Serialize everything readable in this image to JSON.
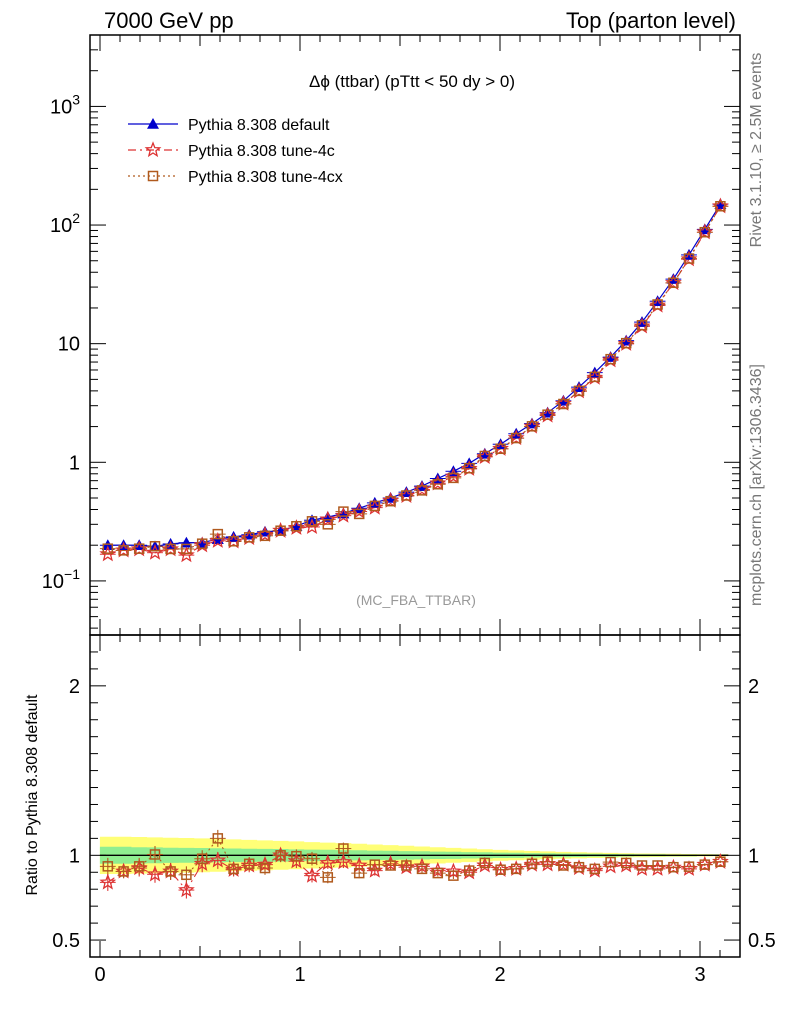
{
  "header": {
    "left": "7000 GeV pp",
    "right": "Top (parton level)"
  },
  "side_text": {
    "rivet": "Rivet 3.1.10, ≥ 2.5M events",
    "mcplots": "mcplots.cern.ch [arXiv:1306.3436]"
  },
  "chart_data": [
    {
      "type": "line",
      "title": "Δϕ (ttbar) (pTtt < 50 dy > 0)",
      "watermark": "(MC_FBA_TTBAR)",
      "yscale": "log",
      "xlim": [
        -0.05,
        3.2
      ],
      "ylim": [
        0.035,
        4000
      ],
      "y_ticks": [
        {
          "v": 0.1,
          "base": "10",
          "exp": "−1"
        },
        {
          "v": 1,
          "base": "1",
          "exp": ""
        },
        {
          "v": 10,
          "base": "10",
          "exp": ""
        },
        {
          "v": 100,
          "base": "10",
          "exp": "2"
        },
        {
          "v": 1000,
          "base": "10",
          "exp": "3"
        }
      ],
      "legend_position": "top-left",
      "x": [
        0.039,
        0.118,
        0.196,
        0.275,
        0.353,
        0.432,
        0.511,
        0.589,
        0.668,
        0.746,
        0.825,
        0.903,
        0.982,
        1.06,
        1.139,
        1.217,
        1.296,
        1.374,
        1.453,
        1.532,
        1.61,
        1.689,
        1.767,
        1.846,
        1.924,
        2.003,
        2.081,
        2.16,
        2.238,
        2.317,
        2.395,
        2.474,
        2.553,
        2.631,
        2.71,
        2.788,
        2.867,
        2.945,
        3.024,
        3.102
      ],
      "series": [
        {
          "name": "Pythia 8.308 default",
          "color": "#0000cc",
          "marker": "triangle",
          "dash": "",
          "values": [
            0.2,
            0.2,
            0.2,
            0.195,
            0.205,
            0.21,
            0.21,
            0.225,
            0.235,
            0.245,
            0.26,
            0.265,
            0.29,
            0.325,
            0.345,
            0.37,
            0.41,
            0.455,
            0.5,
            0.56,
            0.63,
            0.73,
            0.84,
            0.98,
            1.18,
            1.42,
            1.74,
            2.12,
            2.62,
            3.3,
            4.3,
            5.7,
            7.7,
            10.6,
            15.2,
            22.8,
            35.0,
            56.0,
            92.0,
            150.0
          ]
        },
        {
          "name": "Pythia 8.308 tune-4c",
          "color": "#dd3333",
          "marker": "star",
          "dash": "8,4,2,4",
          "values": [
            0.168,
            0.181,
            0.185,
            0.173,
            0.185,
            0.165,
            0.2,
            0.218,
            0.215,
            0.23,
            0.245,
            0.265,
            0.28,
            0.285,
            0.33,
            0.355,
            0.385,
            0.415,
            0.475,
            0.52,
            0.59,
            0.665,
            0.76,
            0.88,
            1.11,
            1.3,
            1.6,
            2.0,
            2.48,
            3.12,
            3.97,
            5.17,
            7.25,
            9.96,
            14.0,
            21.0,
            32.5,
            51.5,
            87.0,
            144.0
          ]
        },
        {
          "name": "Pythia 8.308 tune-4cx",
          "color": "#b05a1e",
          "marker": "open-square",
          "dash": "2,3",
          "values": [
            0.187,
            0.181,
            0.187,
            0.196,
            0.186,
            0.186,
            0.206,
            0.248,
            0.216,
            0.233,
            0.24,
            0.265,
            0.289,
            0.318,
            0.3,
            0.384,
            0.367,
            0.429,
            0.47,
            0.525,
            0.58,
            0.653,
            0.739,
            0.891,
            1.13,
            1.3,
            1.6,
            2.01,
            2.52,
            3.1,
            4.0,
            5.25,
            7.4,
            10.1,
            14.3,
            21.4,
            32.6,
            52.2,
            87.0,
            144.0
          ]
        }
      ]
    },
    {
      "type": "line",
      "ylabel": "Ratio to Pythia 8.308 default",
      "xlim": [
        -0.05,
        3.2
      ],
      "ylim": [
        0.4,
        2.3
      ],
      "x_ticks": [
        {
          "v": 0,
          "label": "0"
        },
        {
          "v": 1,
          "label": "1"
        },
        {
          "v": 2,
          "label": "2"
        },
        {
          "v": 3,
          "label": "3"
        }
      ],
      "y_ticks": [
        {
          "v": 0.5,
          "label": "0.5"
        },
        {
          "v": 1,
          "label": "1"
        },
        {
          "v": 2,
          "label": "2"
        }
      ],
      "reference_line": 1,
      "bands": {
        "green_halfwidth": [
          0.05,
          0.05,
          0.048,
          0.047,
          0.045,
          0.044,
          0.043,
          0.042,
          0.04,
          0.039,
          0.038,
          0.037,
          0.035,
          0.034,
          0.033,
          0.031,
          0.03,
          0.028,
          0.027,
          0.025,
          0.024,
          0.022,
          0.021,
          0.019,
          0.018,
          0.016,
          0.015,
          0.013,
          0.012,
          0.011,
          0.01,
          0.009,
          0.008,
          0.007,
          0.006,
          0.006,
          0.005,
          0.005,
          0.004,
          0.004
        ],
        "yellow_halfwidth": [
          0.11,
          0.11,
          0.108,
          0.106,
          0.104,
          0.102,
          0.1,
          0.097,
          0.094,
          0.091,
          0.088,
          0.085,
          0.082,
          0.078,
          0.075,
          0.072,
          0.068,
          0.064,
          0.06,
          0.056,
          0.052,
          0.048,
          0.044,
          0.04,
          0.036,
          0.032,
          0.029,
          0.026,
          0.023,
          0.02,
          0.018,
          0.016,
          0.014,
          0.012,
          0.011,
          0.01,
          0.009,
          0.008,
          0.007,
          0.006
        ],
        "green_color": "#90ee90",
        "yellow_color": "#ffff77"
      },
      "series": [
        {
          "name": "Pythia 8.308 tune-4c",
          "color": "#dd3333",
          "marker": "star",
          "dash": "8,4,2,4",
          "values": [
            0.84,
            0.905,
            0.925,
            0.888,
            0.905,
            0.795,
            0.95,
            0.97,
            0.915,
            0.94,
            0.945,
            1.0,
            0.965,
            0.88,
            0.955,
            0.96,
            0.94,
            0.91,
            0.95,
            0.93,
            0.935,
            0.91,
            0.905,
            0.9,
            0.94,
            0.915,
            0.92,
            0.945,
            0.947,
            0.945,
            0.925,
            0.91,
            0.935,
            0.94,
            0.92,
            0.92,
            0.928,
            0.92,
            0.945,
            0.962
          ],
          "errors": [
            0.05,
            0.04,
            0.05,
            0.05,
            0.05,
            0.05,
            0.05,
            0.05,
            0.04,
            0.04,
            0.04,
            0.04,
            0.04,
            0.04,
            0.035,
            0.035,
            0.03,
            0.03,
            0.03,
            0.025,
            0.025,
            0.02,
            0.02,
            0.02,
            0.02,
            0.015,
            0.015,
            0.012,
            0.012,
            0.01,
            0.01,
            0.01,
            0.01,
            0.01,
            0.008,
            0.008,
            0.008,
            0.007,
            0.007,
            0.006
          ]
        },
        {
          "name": "Pythia 8.308 tune-4cx",
          "color": "#b05a1e",
          "marker": "open-square",
          "dash": "2,3",
          "values": [
            0.935,
            0.905,
            0.935,
            1.005,
            0.905,
            0.885,
            0.98,
            1.1,
            0.92,
            0.95,
            0.925,
            1.0,
            0.995,
            0.98,
            0.87,
            1.04,
            0.895,
            0.945,
            0.94,
            0.94,
            0.92,
            0.895,
            0.88,
            0.91,
            0.955,
            0.915,
            0.92,
            0.95,
            0.963,
            0.94,
            0.93,
            0.92,
            0.96,
            0.955,
            0.94,
            0.94,
            0.93,
            0.933,
            0.945,
            0.962
          ],
          "errors": [
            0.05,
            0.04,
            0.05,
            0.05,
            0.05,
            0.05,
            0.05,
            0.05,
            0.04,
            0.04,
            0.04,
            0.04,
            0.04,
            0.04,
            0.035,
            0.035,
            0.03,
            0.03,
            0.03,
            0.025,
            0.025,
            0.02,
            0.02,
            0.02,
            0.02,
            0.015,
            0.015,
            0.012,
            0.012,
            0.01,
            0.01,
            0.01,
            0.01,
            0.01,
            0.008,
            0.008,
            0.008,
            0.007,
            0.007,
            0.006
          ]
        }
      ]
    }
  ]
}
